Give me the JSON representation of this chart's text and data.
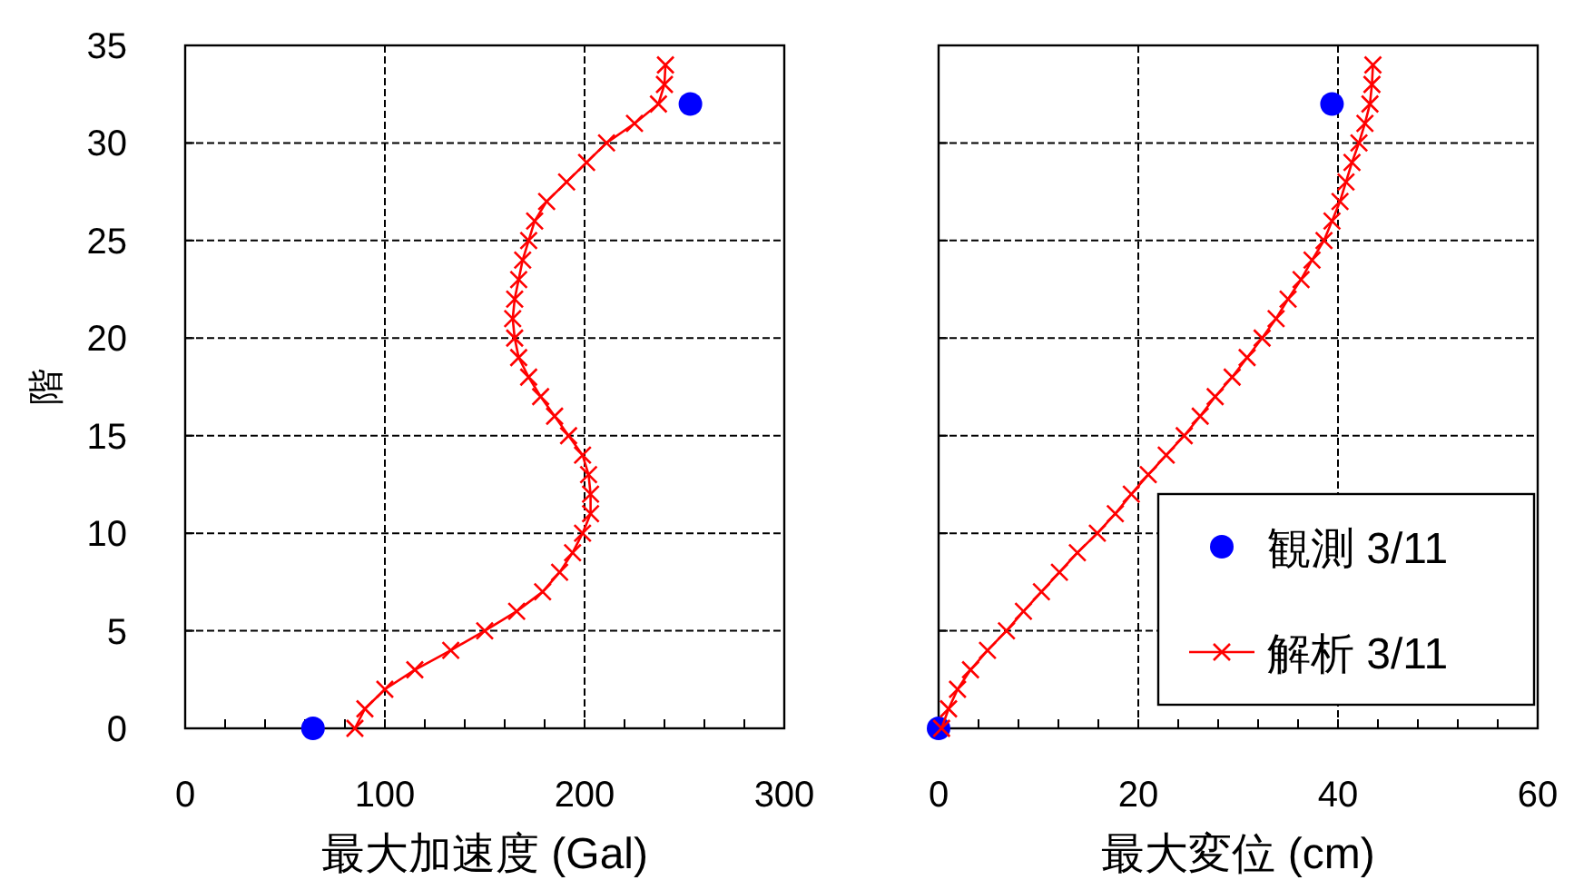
{
  "chart_data": [
    {
      "type": "line",
      "xlabel": "最大加速度 (Gal)",
      "ylabel": "階",
      "xlim": [
        0,
        300
      ],
      "ylim": [
        0,
        35
      ],
      "xticks": [
        0,
        {
          "value": 20,
          "label": null
        },
        {
          "value": 40,
          "label": null
        },
        {
          "value": 60,
          "label": null
        },
        {
          "value": 80,
          "label": null
        },
        100,
        {
          "value": 120,
          "label": null
        },
        {
          "value": 140,
          "label": null
        },
        {
          "value": 160,
          "label": null
        },
        {
          "value": 180,
          "label": null
        },
        200,
        {
          "value": 220,
          "label": null
        },
        {
          "value": 240,
          "label": null
        },
        {
          "value": 260,
          "label": null
        },
        {
          "value": 280,
          "label": null
        },
        300
      ],
      "yticks": [
        0,
        5,
        10,
        15,
        20,
        25,
        30,
        35
      ],
      "grid": true,
      "legend": false,
      "series": [
        {
          "type": "scatter",
          "marker": "circle",
          "color": "#0000ff",
          "x": [
            64,
            253
          ],
          "values": [
            0,
            32
          ]
        },
        {
          "type": "line",
          "marker": "cross",
          "line_style": "solid",
          "color": "#ff0000",
          "x": [
            85,
            90,
            100,
            115,
            133,
            150,
            166,
            179,
            187.5,
            194,
            199,
            203,
            203,
            202,
            199,
            192,
            185,
            178,
            172,
            167,
            165,
            164,
            165,
            167,
            169,
            172,
            175,
            181,
            191,
            201,
            211,
            225,
            237,
            240,
            240.5
          ],
          "values": [
            0,
            1,
            2,
            3,
            4,
            5,
            6,
            7,
            8,
            9,
            10,
            11,
            12,
            13,
            14,
            15,
            16,
            17,
            18,
            19,
            20,
            21,
            22,
            23,
            24,
            25,
            26,
            27,
            28,
            29,
            30,
            31,
            32,
            33,
            34
          ]
        }
      ]
    },
    {
      "type": "line",
      "xlabel": "最大変位 (cm)",
      "xlim": [
        0,
        60
      ],
      "ylim": [
        0,
        35
      ],
      "xticks": [
        0,
        {
          "value": 4,
          "label": null
        },
        {
          "value": 8,
          "label": null
        },
        {
          "value": 12,
          "label": null
        },
        {
          "value": 16,
          "label": null
        },
        20,
        {
          "value": 24,
          "label": null
        },
        {
          "value": 28,
          "label": null
        },
        {
          "value": 32,
          "label": null
        },
        {
          "value": 36,
          "label": null
        },
        40,
        {
          "value": 44,
          "label": null
        },
        {
          "value": 48,
          "label": null
        },
        {
          "value": 52,
          "label": null
        },
        {
          "value": 56,
          "label": null
        },
        60
      ],
      "yticks": [
        0,
        5,
        10,
        15,
        20,
        25,
        30,
        35
      ],
      "tick_labels": "x",
      "grid": true,
      "legend": "bottom right",
      "series": [
        {
          "name": "観測 3/11",
          "type": "scatter",
          "marker": "circle",
          "color": "#0000ff",
          "x": [
            0,
            39.4
          ],
          "values": [
            0,
            32
          ]
        },
        {
          "name": "解析 3/11",
          "type": "line",
          "marker": "cross",
          "line_style": "solid",
          "color": "#ff0000",
          "x": [
            0.3,
            1.0,
            1.9,
            3.2,
            4.9,
            6.8,
            8.5,
            10.3,
            12.1,
            13.9,
            15.9,
            17.7,
            19.3,
            21.0,
            22.8,
            24.6,
            26.2,
            27.7,
            29.4,
            30.9,
            32.4,
            33.8,
            35.0,
            36.3,
            37.4,
            38.6,
            39.4,
            40.2,
            40.8,
            41.4,
            42.1,
            42.7,
            43.2,
            43.4,
            43.5
          ],
          "values": [
            0,
            1,
            2,
            3,
            4,
            5,
            6,
            7,
            8,
            9,
            10,
            11,
            12,
            13,
            14,
            15,
            16,
            17,
            18,
            19,
            20,
            21,
            22,
            23,
            24,
            25,
            26,
            27,
            28,
            29,
            30,
            31,
            32,
            33,
            34
          ]
        }
      ]
    }
  ]
}
